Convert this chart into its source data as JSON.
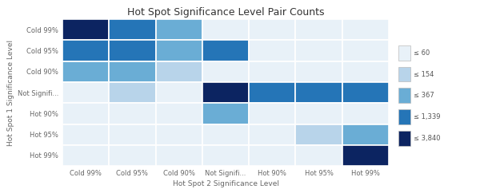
{
  "title": "Hot Spot Significance Level Pair Counts",
  "xlabel": "Hot Spot 2 Significance Level",
  "ylabel": "Hot Spot 1 Significance Level",
  "row_labels": [
    "Cold 99%",
    "Cold 95%",
    "Cold 90%",
    "Not Signifi...",
    "Hot 90%",
    "Hot 95%",
    "Hot 99%"
  ],
  "col_labels": [
    "Cold 99%",
    "Cold 95%",
    "Cold 90%",
    "Not Signifi...",
    "Hot 90%",
    "Hot 95%",
    "Hot 99%"
  ],
  "matrix": [
    [
      3840,
      1339,
      367,
      60,
      60,
      60,
      60
    ],
    [
      1339,
      1339,
      367,
      1339,
      60,
      60,
      60
    ],
    [
      367,
      367,
      154,
      60,
      60,
      60,
      60
    ],
    [
      60,
      154,
      60,
      3840,
      1339,
      1339,
      1339
    ],
    [
      60,
      60,
      60,
      367,
      60,
      60,
      60
    ],
    [
      60,
      60,
      60,
      60,
      60,
      154,
      367
    ],
    [
      60,
      60,
      60,
      60,
      60,
      60,
      3840
    ]
  ],
  "legend_labels": [
    "≤ 60",
    "≤ 154",
    "≤ 367",
    "≤ 1,339",
    "≤ 3,840"
  ],
  "legend_values": [
    60,
    154,
    367,
    1339,
    3840
  ],
  "colors": [
    "#e8f1f8",
    "#b8d4ea",
    "#6aadd5",
    "#2575b7",
    "#0c2461"
  ],
  "background_color": "#ffffff",
  "grid_color": "#ffffff",
  "title_fontsize": 9,
  "label_fontsize": 6.5,
  "tick_fontsize": 6
}
